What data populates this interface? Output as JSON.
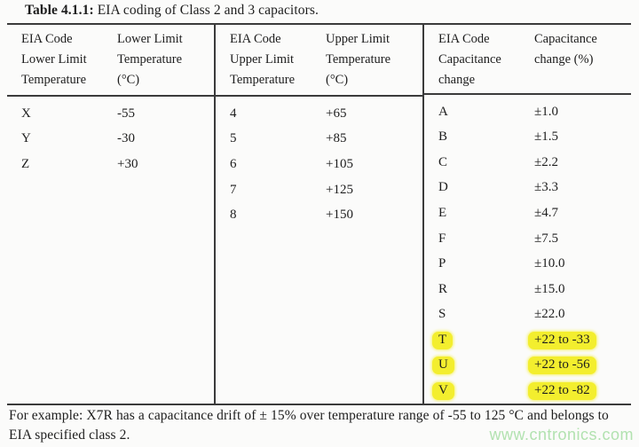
{
  "title": {
    "label": "Table 4.1.1:",
    "text": " EIA coding of Class 2 and 3 capacitors."
  },
  "table": {
    "groups": [
      {
        "code_header": "EIA Code\nLower Limit\nTemperature",
        "value_header": "Lower Limit\nTemperature\n(°C)",
        "rows": [
          {
            "code": "X",
            "value": "-55"
          },
          {
            "code": "Y",
            "value": "-30"
          },
          {
            "code": "Z",
            "value": "+30"
          }
        ]
      },
      {
        "code_header": "EIA Code\nUpper Limit\nTemperature",
        "value_header": "Upper Limit\nTemperature\n(°C)",
        "rows": [
          {
            "code": "4",
            "value": "+65"
          },
          {
            "code": "5",
            "value": "+85"
          },
          {
            "code": "6",
            "value": "+105"
          },
          {
            "code": "7",
            "value": "+125"
          },
          {
            "code": "8",
            "value": "+150"
          }
        ]
      },
      {
        "code_header": "EIA Code\nCapacitance\nchange",
        "value_header": "Capacitance\nchange (%)",
        "rows": [
          {
            "code": "A",
            "value": "±1.0"
          },
          {
            "code": "B",
            "value": "±1.5"
          },
          {
            "code": "C",
            "value": "±2.2"
          },
          {
            "code": "D",
            "value": "±3.3"
          },
          {
            "code": "E",
            "value": "±4.7"
          },
          {
            "code": "F",
            "value": "±7.5"
          },
          {
            "code": "P",
            "value": "±10.0"
          },
          {
            "code": "R",
            "value": "±15.0"
          },
          {
            "code": "S",
            "value": "±22.0"
          },
          {
            "code": "T",
            "value": "+22 to -33",
            "highlight": true
          },
          {
            "code": "U",
            "value": "+22 to -56",
            "highlight": true
          },
          {
            "code": "V",
            "value": "+22 to -82",
            "highlight": true
          }
        ]
      }
    ]
  },
  "footer": "For example: X7R has a capacitance drift of ± 15% over temperature range of -55 to 125 °C and belongs to EIA specified class 2.",
  "watermark": "www.cntronics.com",
  "colors": {
    "highlight": "#f3ee2e",
    "watermark": "#b2e2b0",
    "rule": "#3b3b3b"
  }
}
